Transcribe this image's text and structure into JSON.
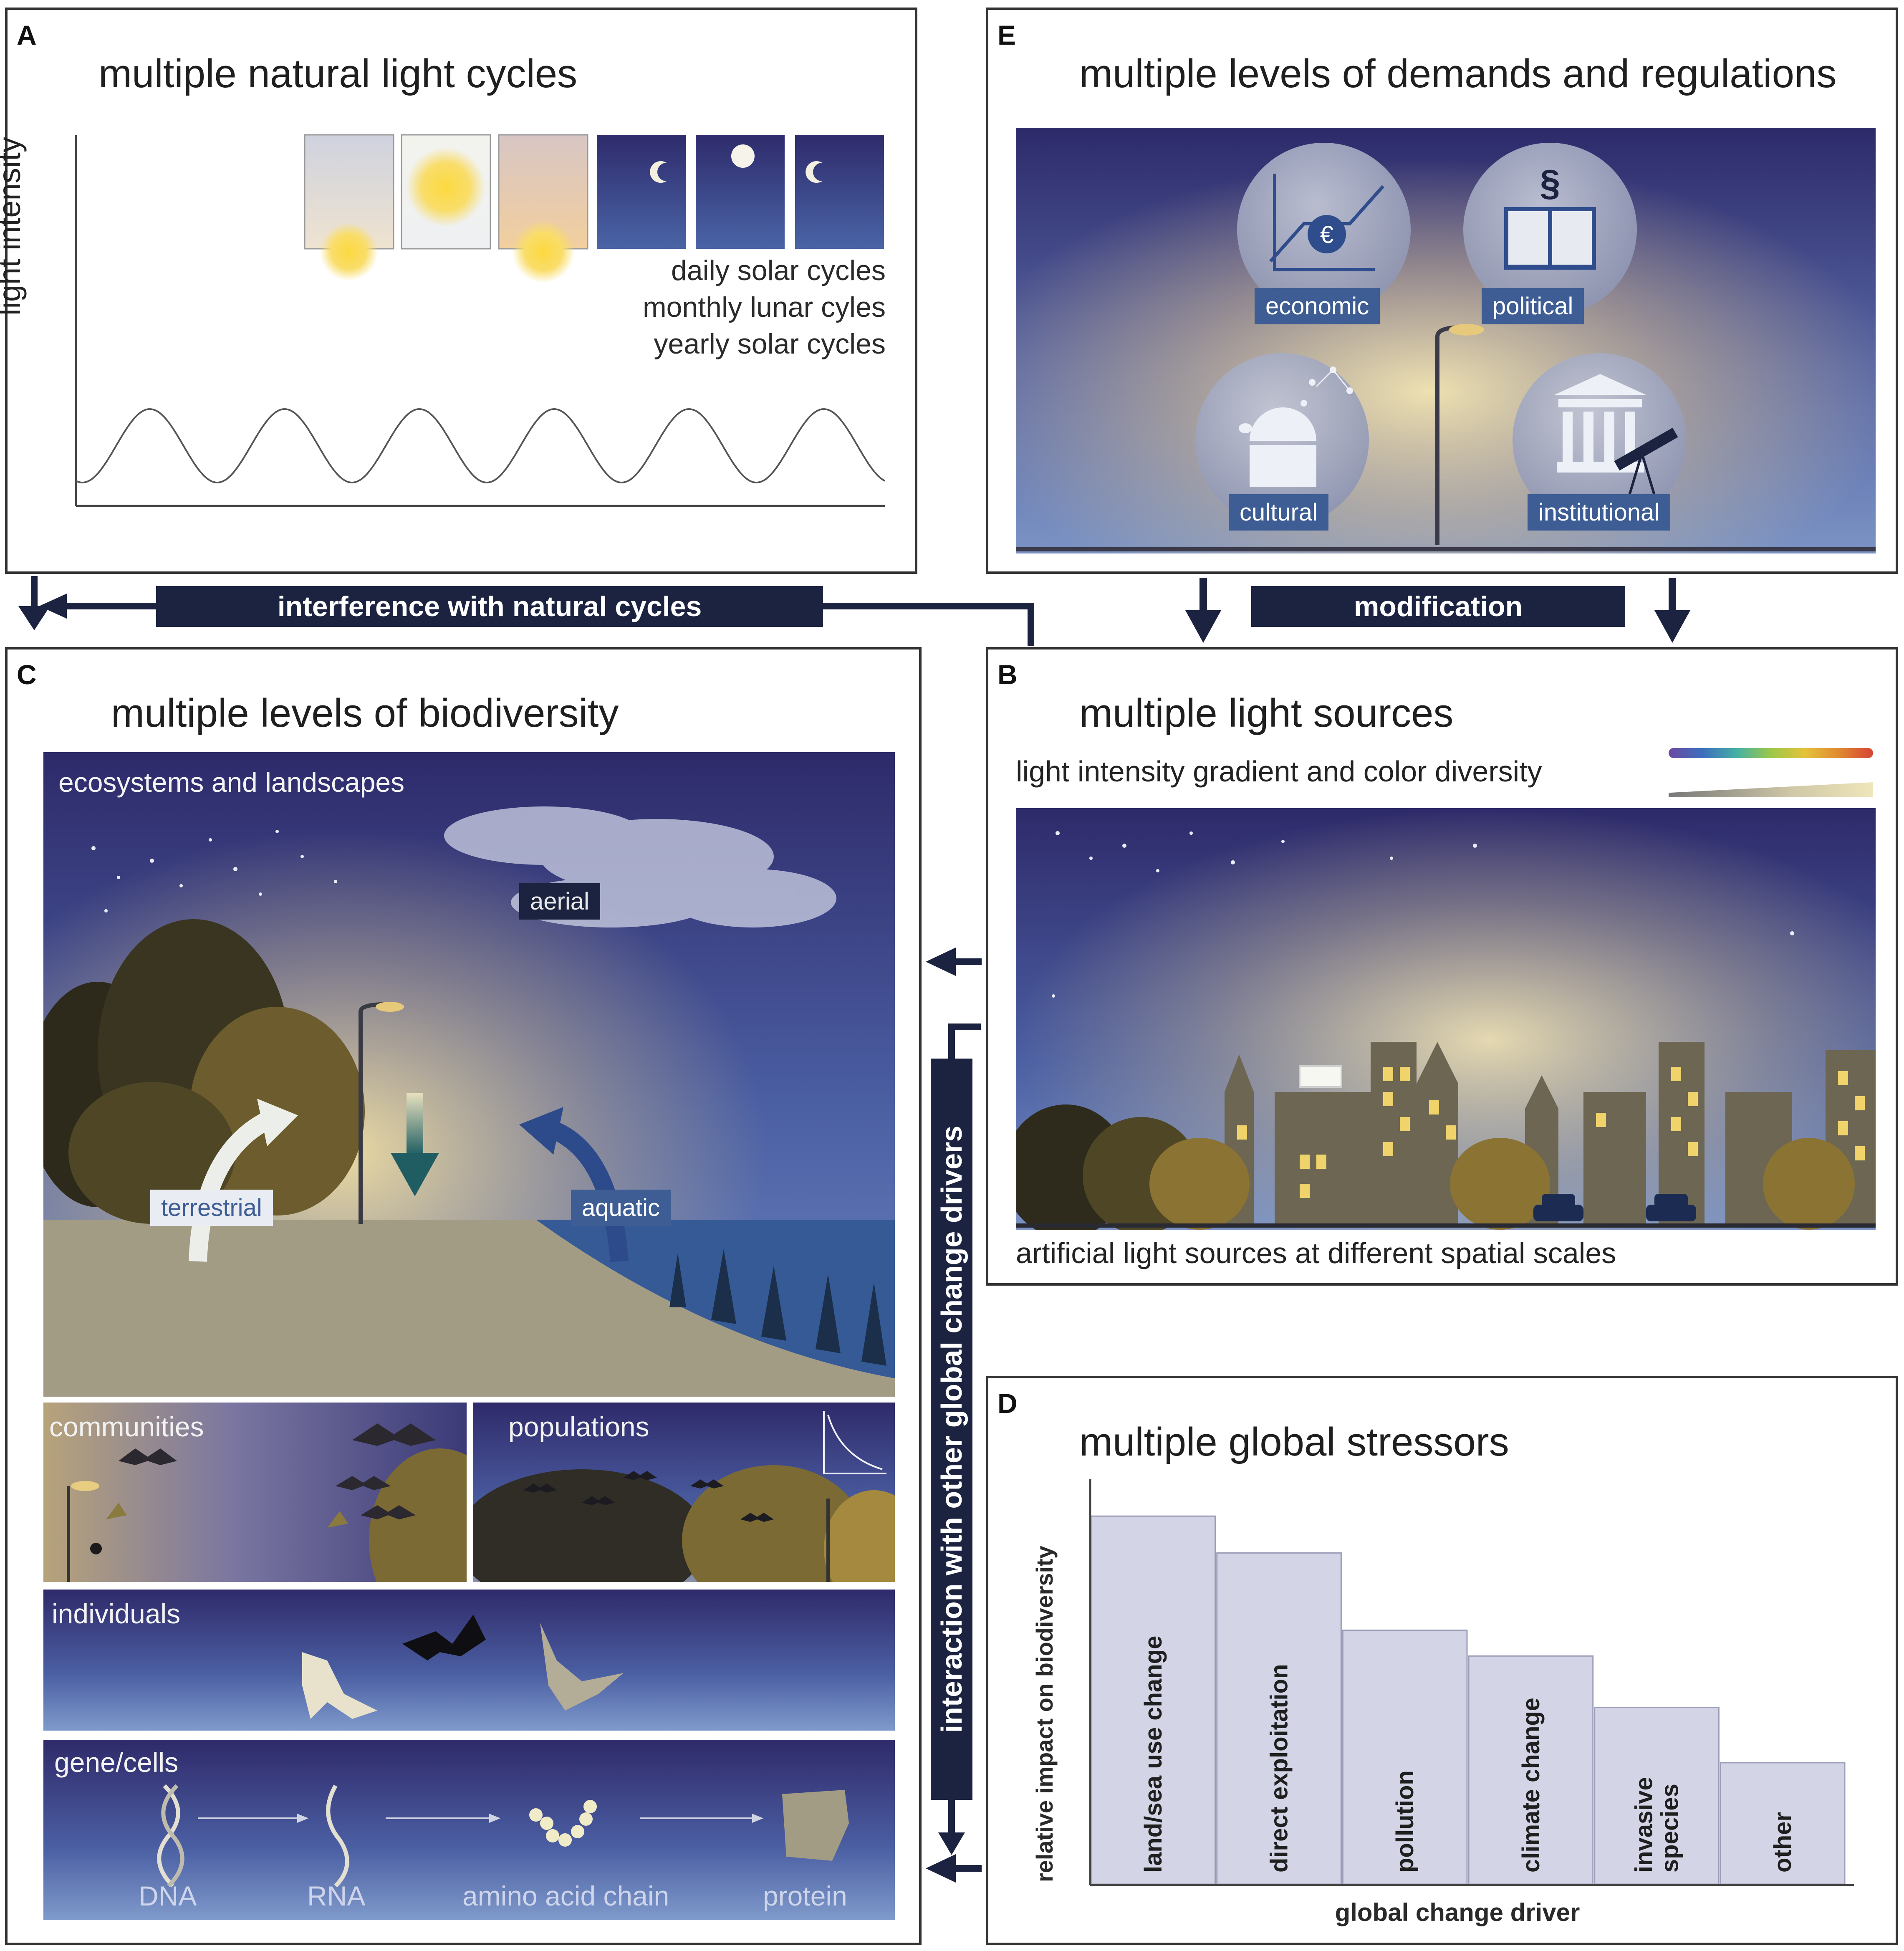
{
  "panel_a": {
    "label": "A",
    "title": "multiple natural light cycles",
    "ylabel": "light intensity",
    "cycles": [
      "daily solar cycles",
      "monthly lunar cyles",
      "yearly solar cycles"
    ]
  },
  "panel_e": {
    "label": "E",
    "title": "multiple levels of demands and regulations",
    "spheres": [
      "economic",
      "political",
      "cultural",
      "institutional"
    ],
    "symbols": {
      "euro": "€",
      "section": "§"
    }
  },
  "connectors": {
    "interference": "interference with natural cycles",
    "modification": "modification",
    "interaction": "interaction with other global change drivers"
  },
  "panel_c": {
    "label": "C",
    "title": "multiple levels of biodiversity",
    "levels": {
      "ecosystems": "ecosystems and landscapes",
      "communities": "communities",
      "populations": "populations",
      "individuals": "individuals",
      "genes": "gene/cells"
    },
    "habitats": {
      "aerial": "aerial",
      "terrestrial": "terrestrial",
      "aquatic": "aquatic"
    },
    "molecules": [
      "DNA",
      "RNA",
      "amino acid chain",
      "protein"
    ]
  },
  "panel_b": {
    "label": "B",
    "title": "multiple light sources",
    "subtitle": "light intensity gradient and color diversity",
    "caption": "artificial light sources at different spatial scales"
  },
  "panel_d": {
    "label": "D",
    "title": "multiple global stressors"
  },
  "chart_data": {
    "type": "bar",
    "title": "multiple global stressors",
    "xlabel": "global change driver",
    "ylabel": "relative impact on biodiversity",
    "categories": [
      "land/sea use change",
      "direct exploitation",
      "pollution",
      "climate change",
      "invasive species",
      "other"
    ],
    "category_lines": [
      [
        "land/sea use change"
      ],
      [
        "direct exploitation"
      ],
      [
        "pollution"
      ],
      [
        "climate change"
      ],
      [
        "invasive",
        "species"
      ],
      [
        "other"
      ]
    ],
    "values": [
      100,
      90,
      69,
      62,
      48,
      33
    ],
    "ylim": [
      0,
      110
    ],
    "grid": false,
    "colors": {
      "bar_fill": "#d3d4e6",
      "bar_stroke": "#9c9db8"
    }
  },
  "colors": {
    "navy": "#1b2340",
    "chip_blue": "#3d5d94",
    "night_top": "#2f2b6b",
    "night_bottom": "#4d69a8",
    "glow": "#f1e2a8"
  }
}
